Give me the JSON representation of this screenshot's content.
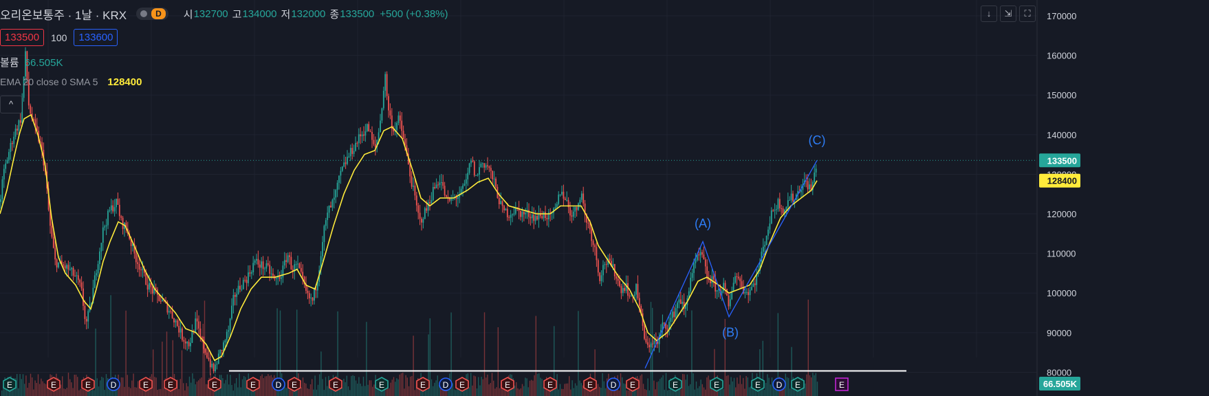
{
  "header": {
    "symbol": "오리온보통주 · 1날 · KRX",
    "badge": "D",
    "open_label": "시",
    "open": "132700",
    "high_label": "고",
    "high": "134000",
    "low_label": "저",
    "low": "132000",
    "close_label": "종",
    "close": "133500",
    "change": "+500 (+0.38%)"
  },
  "order": {
    "bid": "133500",
    "qty": "100",
    "ask": "133600"
  },
  "volume_legend": {
    "label": "볼륨",
    "value": "66.505K"
  },
  "ema_legend": {
    "label": "EMA 20 close 0 SMA 5",
    "value": "128400"
  },
  "toolbar": {
    "down_icon": "↓",
    "collapse_icon": "⇲",
    "fullscreen_icon": "⛶",
    "chevron_up": "^"
  },
  "colors": {
    "up": "#26a69a",
    "down": "#ef5350",
    "ema": "#ffeb3b",
    "pattern": "#2962ff",
    "support": "#ffffff",
    "background": "#161a25"
  },
  "chart_data": {
    "type": "candlestick",
    "ylim": [
      74000,
      174000
    ],
    "y_ticks": [
      80000,
      90000,
      100000,
      110000,
      120000,
      130000,
      140000,
      150000,
      160000,
      170000
    ],
    "last_price": 133500,
    "ema_value": 128400,
    "volume_value": "66.505K",
    "price_path": [
      [
        0,
        123000
      ],
      [
        5,
        130000
      ],
      [
        12,
        135000
      ],
      [
        20,
        140000
      ],
      [
        30,
        144000
      ],
      [
        37,
        160000
      ],
      [
        42,
        147000
      ],
      [
        50,
        142000
      ],
      [
        58,
        138000
      ],
      [
        65,
        132000
      ],
      [
        72,
        118000
      ],
      [
        80,
        108000
      ],
      [
        90,
        107000
      ],
      [
        100,
        106000
      ],
      [
        110,
        104000
      ],
      [
        118,
        101000
      ],
      [
        125,
        92000
      ],
      [
        132,
        97000
      ],
      [
        140,
        106000
      ],
      [
        150,
        116000
      ],
      [
        160,
        121000
      ],
      [
        170,
        123000
      ],
      [
        176,
        118000
      ],
      [
        185,
        116000
      ],
      [
        195,
        110000
      ],
      [
        205,
        106000
      ],
      [
        215,
        102000
      ],
      [
        225,
        100000
      ],
      [
        235,
        98000
      ],
      [
        245,
        96000
      ],
      [
        255,
        93000
      ],
      [
        265,
        89000
      ],
      [
        275,
        87000
      ],
      [
        285,
        93000
      ],
      [
        292,
        88000
      ],
      [
        300,
        85000
      ],
      [
        310,
        80000
      ],
      [
        318,
        84000
      ],
      [
        325,
        87000
      ],
      [
        333,
        91000
      ],
      [
        340,
        99000
      ],
      [
        350,
        102000
      ],
      [
        360,
        104000
      ],
      [
        370,
        108000
      ],
      [
        380,
        107000
      ],
      [
        390,
        106000
      ],
      [
        400,
        103000
      ],
      [
        410,
        105000
      ],
      [
        418,
        110000
      ],
      [
        425,
        106000
      ],
      [
        432,
        107000
      ],
      [
        440,
        103000
      ],
      [
        447,
        99000
      ],
      [
        455,
        98000
      ],
      [
        462,
        104000
      ],
      [
        470,
        115000
      ],
      [
        478,
        121000
      ],
      [
        485,
        123000
      ],
      [
        495,
        130000
      ],
      [
        505,
        134000
      ],
      [
        515,
        137000
      ],
      [
        525,
        140000
      ],
      [
        535,
        142000
      ],
      [
        545,
        136000
      ],
      [
        552,
        142000
      ],
      [
        560,
        155000
      ],
      [
        565,
        146000
      ],
      [
        572,
        141000
      ],
      [
        580,
        144000
      ],
      [
        588,
        138000
      ],
      [
        595,
        131000
      ],
      [
        602,
        125000
      ],
      [
        610,
        118000
      ],
      [
        620,
        121000
      ],
      [
        630,
        126000
      ],
      [
        640,
        129000
      ],
      [
        650,
        123000
      ],
      [
        660,
        124000
      ],
      [
        670,
        125000
      ],
      [
        678,
        128000
      ],
      [
        685,
        134000
      ],
      [
        692,
        129000
      ],
      [
        700,
        133000
      ],
      [
        710,
        132000
      ],
      [
        720,
        127000
      ],
      [
        730,
        121000
      ],
      [
        740,
        120000
      ],
      [
        750,
        121000
      ],
      [
        760,
        120000
      ],
      [
        770,
        120000
      ],
      [
        780,
        119000
      ],
      [
        790,
        120000
      ],
      [
        800,
        119000
      ],
      [
        808,
        121000
      ],
      [
        815,
        126000
      ],
      [
        822,
        124000
      ],
      [
        830,
        120000
      ],
      [
        838,
        121000
      ],
      [
        845,
        126000
      ],
      [
        850,
        120000
      ],
      [
        858,
        116000
      ],
      [
        865,
        111000
      ],
      [
        872,
        104000
      ],
      [
        880,
        108000
      ],
      [
        888,
        107000
      ],
      [
        895,
        105000
      ],
      [
        902,
        101000
      ],
      [
        910,
        102000
      ],
      [
        918,
        98000
      ],
      [
        925,
        102000
      ],
      [
        932,
        94000
      ],
      [
        940,
        86000
      ],
      [
        948,
        88000
      ],
      [
        956,
        87000
      ],
      [
        964,
        92000
      ],
      [
        972,
        92000
      ],
      [
        980,
        95000
      ],
      [
        988,
        99000
      ],
      [
        996,
        95000
      ],
      [
        1004,
        104000
      ],
      [
        1012,
        108000
      ],
      [
        1020,
        110000
      ],
      [
        1028,
        104000
      ],
      [
        1036,
        103000
      ],
      [
        1044,
        100000
      ],
      [
        1052,
        102000
      ],
      [
        1060,
        96000
      ],
      [
        1068,
        105000
      ],
      [
        1076,
        103000
      ],
      [
        1084,
        100000
      ],
      [
        1092,
        101000
      ],
      [
        1100,
        104000
      ],
      [
        1108,
        110000
      ],
      [
        1116,
        116000
      ],
      [
        1124,
        121000
      ],
      [
        1132,
        123000
      ],
      [
        1140,
        121000
      ],
      [
        1148,
        124000
      ],
      [
        1156,
        124000
      ],
      [
        1164,
        127000
      ],
      [
        1172,
        128000
      ],
      [
        1180,
        126000
      ],
      [
        1188,
        133500
      ]
    ],
    "ema_path": [
      [
        0,
        120000
      ],
      [
        10,
        126000
      ],
      [
        20,
        134000
      ],
      [
        28,
        140000
      ],
      [
        35,
        144000
      ],
      [
        45,
        145000
      ],
      [
        55,
        140000
      ],
      [
        65,
        133000
      ],
      [
        75,
        119000
      ],
      [
        85,
        109000
      ],
      [
        95,
        105000
      ],
      [
        110,
        102000
      ],
      [
        122,
        98000
      ],
      [
        132,
        96000
      ],
      [
        140,
        101000
      ],
      [
        150,
        108000
      ],
      [
        160,
        113000
      ],
      [
        172,
        118000
      ],
      [
        182,
        117000
      ],
      [
        195,
        112000
      ],
      [
        210,
        106000
      ],
      [
        225,
        101000
      ],
      [
        240,
        98000
      ],
      [
        255,
        95000
      ],
      [
        270,
        91000
      ],
      [
        285,
        90000
      ],
      [
        300,
        87000
      ],
      [
        312,
        83000
      ],
      [
        322,
        84000
      ],
      [
        335,
        89000
      ],
      [
        350,
        96000
      ],
      [
        365,
        101000
      ],
      [
        380,
        104000
      ],
      [
        400,
        104000
      ],
      [
        420,
        105000
      ],
      [
        432,
        106000
      ],
      [
        445,
        102000
      ],
      [
        458,
        101000
      ],
      [
        470,
        108000
      ],
      [
        485,
        117000
      ],
      [
        500,
        125000
      ],
      [
        515,
        131000
      ],
      [
        530,
        135000
      ],
      [
        545,
        136000
      ],
      [
        558,
        141000
      ],
      [
        570,
        142000
      ],
      [
        585,
        139000
      ],
      [
        600,
        131000
      ],
      [
        612,
        124000
      ],
      [
        625,
        122000
      ],
      [
        640,
        124000
      ],
      [
        660,
        124000
      ],
      [
        680,
        126000
      ],
      [
        695,
        128000
      ],
      [
        710,
        129000
      ],
      [
        725,
        125000
      ],
      [
        740,
        122000
      ],
      [
        760,
        121000
      ],
      [
        780,
        120000
      ],
      [
        800,
        120000
      ],
      [
        815,
        122000
      ],
      [
        830,
        122000
      ],
      [
        845,
        122000
      ],
      [
        858,
        118000
      ],
      [
        870,
        112000
      ],
      [
        885,
        108000
      ],
      [
        900,
        104000
      ],
      [
        915,
        101000
      ],
      [
        930,
        96000
      ],
      [
        942,
        90000
      ],
      [
        955,
        88000
      ],
      [
        970,
        90000
      ],
      [
        985,
        94000
      ],
      [
        1000,
        98000
      ],
      [
        1015,
        103000
      ],
      [
        1028,
        104000
      ],
      [
        1045,
        102000
      ],
      [
        1060,
        100000
      ],
      [
        1075,
        101000
      ],
      [
        1090,
        102000
      ],
      [
        1105,
        106000
      ],
      [
        1120,
        113000
      ],
      [
        1135,
        119000
      ],
      [
        1150,
        122000
      ],
      [
        1165,
        124000
      ],
      [
        1180,
        126000
      ],
      [
        1188,
        128400
      ]
    ],
    "pattern_points": [
      {
        "x": 938,
        "y": 81000
      },
      {
        "x": 1022,
        "y": 113000
      },
      {
        "x": 1060,
        "y": 94000
      },
      {
        "x": 1188,
        "y": 133500
      }
    ],
    "pattern_labels": [
      {
        "text": "(A)",
        "x": 1022,
        "y": 116500
      },
      {
        "text": "(B)",
        "x": 1062,
        "y": 89000
      },
      {
        "text": "(C)",
        "x": 1188,
        "y": 137500
      }
    ],
    "support_level": 80000,
    "support_range": [
      333,
      1318
    ],
    "events": [
      {
        "x": 14,
        "t": "E",
        "c": "#26a69a"
      },
      {
        "x": 78,
        "t": "E",
        "c": "#ef5350"
      },
      {
        "x": 128,
        "t": "E",
        "c": "#ef5350"
      },
      {
        "x": 165,
        "t": "D",
        "c": "#2962ff"
      },
      {
        "x": 212,
        "t": "E",
        "c": "#ef5350"
      },
      {
        "x": 248,
        "t": "E",
        "c": "#ef5350"
      },
      {
        "x": 312,
        "t": "E",
        "c": "#ef5350"
      },
      {
        "x": 368,
        "t": "E",
        "c": "#ef5350"
      },
      {
        "x": 405,
        "t": "D",
        "c": "#2962ff"
      },
      {
        "x": 428,
        "t": "E",
        "c": "#ef5350"
      },
      {
        "x": 488,
        "t": "E",
        "c": "#ef5350"
      },
      {
        "x": 555,
        "t": "E",
        "c": "#26a69a"
      },
      {
        "x": 615,
        "t": "E",
        "c": "#ef5350"
      },
      {
        "x": 648,
        "t": "D",
        "c": "#2962ff"
      },
      {
        "x": 672,
        "t": "E",
        "c": "#ef5350"
      },
      {
        "x": 738,
        "t": "E",
        "c": "#ef5350"
      },
      {
        "x": 800,
        "t": "E",
        "c": "#ef5350"
      },
      {
        "x": 858,
        "t": "E",
        "c": "#ef5350"
      },
      {
        "x": 892,
        "t": "D",
        "c": "#2962ff"
      },
      {
        "x": 920,
        "t": "E",
        "c": "#ef5350"
      },
      {
        "x": 982,
        "t": "E",
        "c": "#26a69a"
      },
      {
        "x": 1042,
        "t": "E",
        "c": "#26a69a"
      },
      {
        "x": 1102,
        "t": "E",
        "c": "#26a69a"
      },
      {
        "x": 1133,
        "t": "D",
        "c": "#2962ff"
      },
      {
        "x": 1160,
        "t": "E",
        "c": "#26a69a"
      },
      {
        "x": 1224,
        "t": "E",
        "c": "#c026d3"
      }
    ]
  }
}
